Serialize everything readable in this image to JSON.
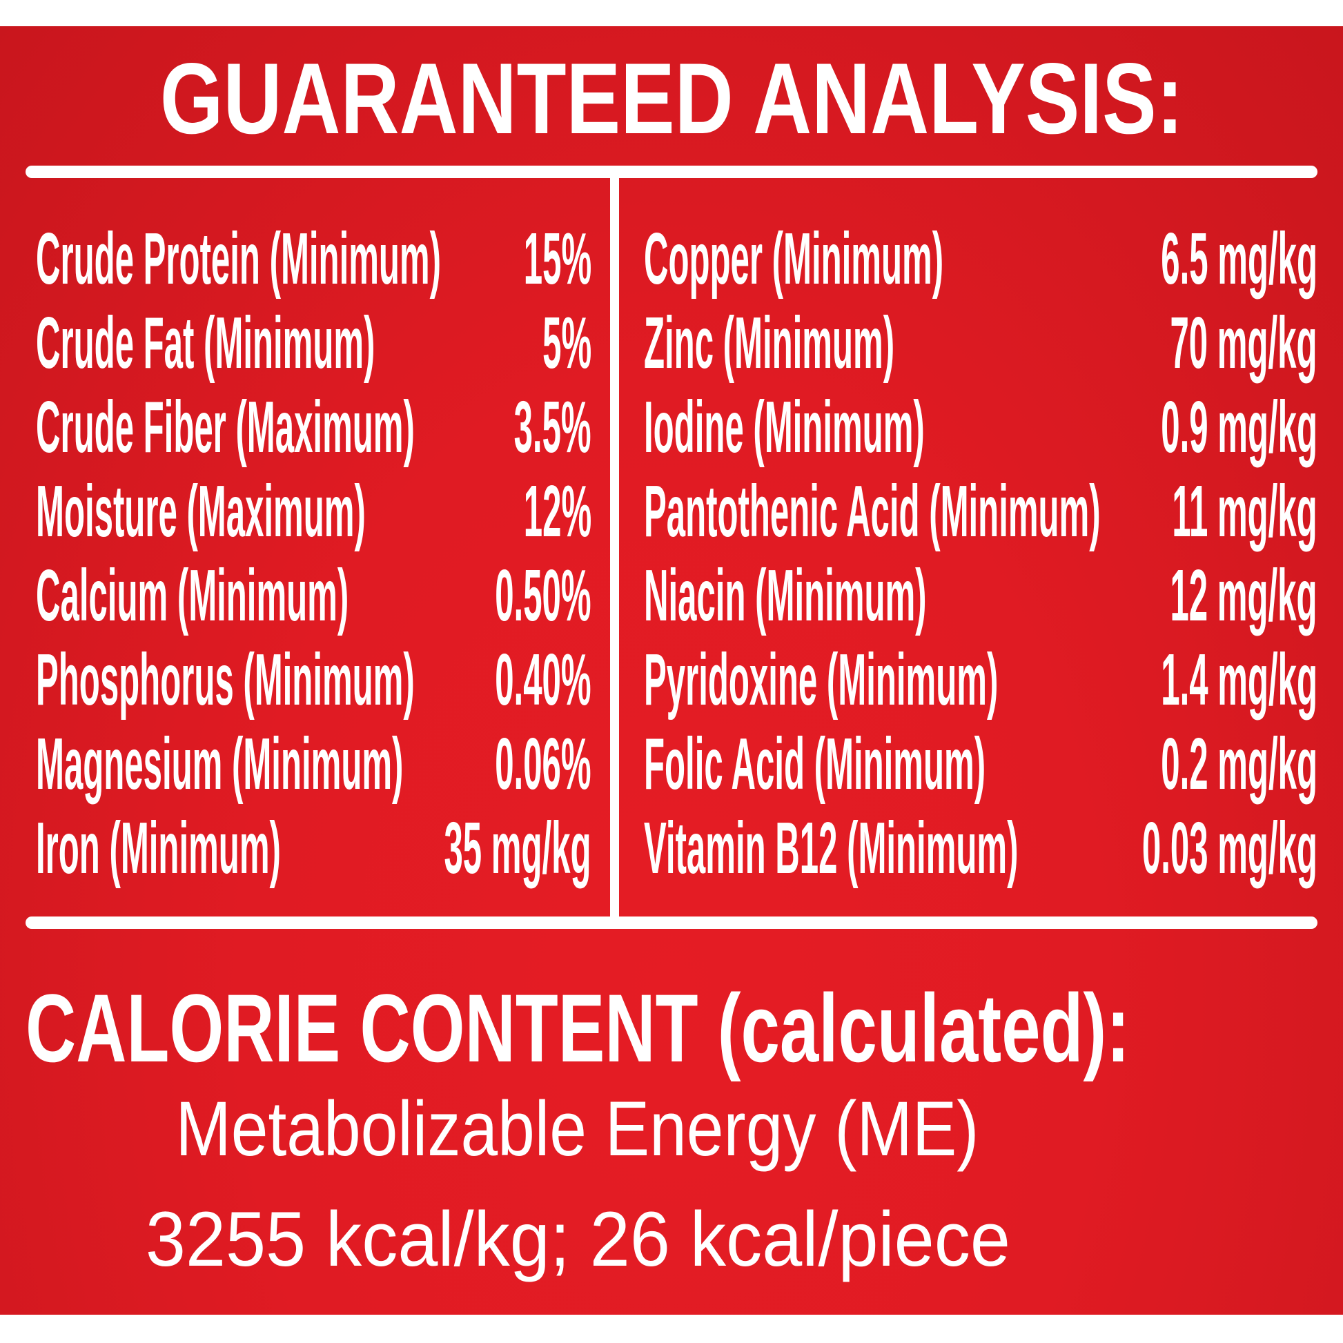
{
  "title": "GUARANTEED ANALYSIS:",
  "colors": {
    "background": "#e01b23",
    "text": "#ffffff"
  },
  "left_column": [
    {
      "label": "Crude Protein (Minimum)",
      "value": "15%"
    },
    {
      "label": "Crude Fat (Minimum)",
      "value": "5%"
    },
    {
      "label": "Crude Fiber (Maximum)",
      "value": "3.5%"
    },
    {
      "label": "Moisture (Maximum)",
      "value": "12%"
    },
    {
      "label": "Calcium (Minimum)",
      "value": "0.50%"
    },
    {
      "label": "Phosphorus (Minimum)",
      "value": "0.40%"
    },
    {
      "label": "Magnesium (Minimum)",
      "value": "0.06%"
    },
    {
      "label": "Iron (Minimum)",
      "value": "35 mg/kg"
    }
  ],
  "right_column": [
    {
      "label": "Copper (Minimum)",
      "value": "6.5 mg/kg"
    },
    {
      "label": "Zinc (Minimum)",
      "value": "70 mg/kg"
    },
    {
      "label": "Iodine (Minimum)",
      "value": "0.9 mg/kg"
    },
    {
      "label": "Pantothenic Acid (Minimum)",
      "value": "11 mg/kg"
    },
    {
      "label": "Niacin (Minimum)",
      "value": "12 mg/kg"
    },
    {
      "label": "Pyridoxine (Minimum)",
      "value": "1.4 mg/kg"
    },
    {
      "label": "Folic Acid (Minimum)",
      "value": "0.2 mg/kg"
    },
    {
      "label": "Vitamin B12 (Minimum)",
      "value": "0.03 mg/kg"
    }
  ],
  "calorie": {
    "heading": "CALORIE CONTENT (calculated):",
    "line1": "Metabolizable Energy (ME)",
    "line2": "3255 kcal/kg; 26 kcal/piece"
  }
}
